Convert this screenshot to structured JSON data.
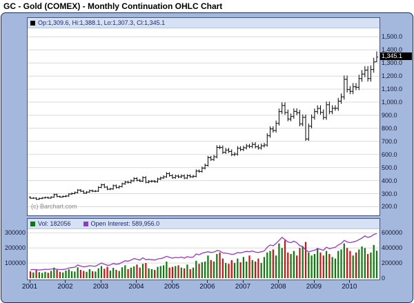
{
  "title": "GC - Gold (COMEX) - Monthly Continuation OHLC Chart",
  "main_legend": {
    "marker": "black-square-icon",
    "text": "Op:1,309.6, Hi:1,388.1, Lo:1,307.3, Cl:1,345.1"
  },
  "lower_legend": {
    "vol_marker": "green-square-icon",
    "vol_text": "Vol: 182056",
    "oi_marker": "purple-square-icon",
    "oi_text": "Open Interest: 589,956.0"
  },
  "watermark": "(c) Barchart.com",
  "price_badge": "1,345.1",
  "axes": {
    "price_tick_labels": [
      "1,500.0",
      "1,400.0",
      "1,300.0",
      "1,200.0",
      "1,100.0",
      "1,000.0",
      "900.0",
      "800.0",
      "700.0",
      "600.0",
      "500.0",
      "400.0",
      "300.0",
      "200.0"
    ],
    "vol_tick_labels_left": [
      "300000",
      "200000",
      "100000"
    ],
    "oi_tick_labels_right": [
      "600000",
      "400000",
      "200000",
      "0"
    ],
    "year_labels": [
      "2001",
      "2002",
      "2003",
      "2004",
      "2005",
      "2006",
      "2007",
      "2008",
      "2009",
      "2010"
    ]
  },
  "colors": {
    "background": "#a4b8de",
    "panel_border": "#1b2c54",
    "plot_bg": "#ffffff",
    "grid": "#d9d9d9",
    "ohlc_bar": "#000000",
    "volume_up": "#0a7a0a",
    "volume_down": "#cc1111",
    "open_interest": "#9933cc",
    "legend_bg": "#d6e1f5",
    "legend_text": "#1a2a66",
    "badge_bg": "#000000",
    "badge_text": "#ffffff",
    "watermark": "#8a8a8a"
  },
  "chart_data": {
    "type": "ohlc",
    "title": "GC - Gold (COMEX) - Monthly Continuation OHLC Chart",
    "frequency": "monthly",
    "x_start": "2001-01",
    "x_end": "2010-10",
    "bars": 118,
    "price_axis": {
      "range": [
        155,
        1560
      ],
      "ticks": [
        1500,
        1400,
        1300,
        1200,
        1100,
        1000,
        900,
        800,
        700,
        600,
        500,
        400,
        300,
        200
      ]
    },
    "volume_axis": {
      "range": [
        0,
        320000
      ],
      "ticks": [
        300000,
        200000,
        100000
      ]
    },
    "open_interest_axis": {
      "range": [
        0,
        640000
      ],
      "ticks": [
        600000,
        400000,
        200000,
        0
      ]
    },
    "open": [
      272,
      265,
      266,
      257,
      263,
      267,
      270,
      266,
      273,
      293,
      278,
      274,
      279,
      282,
      297,
      301,
      308,
      327,
      318,
      304,
      312,
      323,
      318,
      319,
      348,
      368,
      350,
      334,
      336,
      361,
      346,
      354,
      375,
      388,
      386,
      398,
      416,
      402,
      396,
      423,
      387,
      393,
      395,
      391,
      412,
      420,
      429,
      453,
      438,
      422,
      435,
      428,
      436,
      419,
      437,
      429,
      433,
      473,
      470,
      495,
      517,
      575,
      561,
      582,
      654,
      653,
      616,
      634,
      623,
      599,
      603,
      647,
      638,
      651,
      664,
      661,
      677,
      659,
      650,
      666,
      672,
      743,
      795,
      783,
      838,
      928,
      975,
      921,
      871,
      891,
      930,
      918,
      833,
      884,
      718,
      816,
      884,
      928,
      952,
      922,
      883,
      980,
      927,
      953,
      953,
      1008,
      1040,
      1175,
      1096,
      1083,
      1118,
      1114,
      1180,
      1215,
      1245,
      1181,
      1250,
      1309.6
    ],
    "high": [
      279,
      273,
      273,
      270,
      274,
      277,
      277,
      280,
      300,
      300,
      285,
      286,
      289,
      304,
      309,
      316,
      335,
      335,
      326,
      320,
      331,
      331,
      327,
      357,
      377,
      377,
      359,
      344,
      370,
      370,
      363,
      384,
      398,
      398,
      408,
      426,
      426,
      412,
      433,
      433,
      403,
      405,
      405,
      422,
      430,
      440,
      464,
      464,
      449,
      446,
      446,
      447,
      447,
      448,
      448,
      444,
      485,
      485,
      507,
      530,
      589,
      589,
      597,
      670,
      670,
      669,
      650,
      650,
      639,
      618,
      663,
      663,
      667,
      681,
      681,
      694,
      694,
      676,
      683,
      689,
      762,
      815,
      815,
      859,
      951,
      999,
      999,
      944,
      913,
      953,
      953,
      941,
      906,
      906,
      836,
      906,
      951,
      976,
      976,
      945,
      1005,
      1005,
      977,
      977,
      1033,
      1066,
      1204,
      1204,
      1123,
      1146,
      1146,
      1210,
      1245,
      1276,
      1276,
      1281,
      1340,
      1388.1
    ],
    "low": [
      260,
      260,
      252,
      252,
      258,
      262,
      261,
      261,
      268,
      272,
      269,
      269,
      273,
      276,
      291,
      295,
      302,
      312,
      298,
      298,
      306,
      312,
      312,
      313,
      341,
      343,
      327,
      327,
      329,
      339,
      339,
      347,
      368,
      378,
      378,
      390,
      394,
      388,
      388,
      379,
      379,
      385,
      383,
      383,
      404,
      412,
      420,
      429,
      414,
      414,
      419,
      419,
      411,
      411,
      420,
      420,
      424,
      461,
      461,
      485,
      507,
      550,
      550,
      570,
      640,
      604,
      604,
      611,
      587,
      587,
      591,
      625,
      625,
      638,
      648,
      648,
      646,
      637,
      637,
      653,
      659,
      728,
      767,
      767,
      821,
      909,
      903,
      854,
      854,
      873,
      900,
      816,
      816,
      704,
      704,
      800,
      866,
      909,
      904,
      865,
      865,
      908,
      908,
      934,
      934,
      988,
      1019,
      1074,
      1061,
      1061,
      1092,
      1092,
      1156,
      1191,
      1157,
      1157,
      1225,
      1307.3
    ],
    "close": [
      265,
      266,
      257,
      263,
      267,
      270,
      266,
      273,
      293,
      278,
      274,
      279,
      282,
      297,
      301,
      308,
      327,
      318,
      304,
      312,
      323,
      318,
      319,
      348,
      368,
      350,
      334,
      336,
      361,
      346,
      354,
      375,
      388,
      386,
      398,
      416,
      402,
      396,
      423,
      387,
      393,
      395,
      391,
      412,
      420,
      429,
      453,
      438,
      422,
      435,
      428,
      436,
      419,
      437,
      429,
      433,
      473,
      470,
      495,
      517,
      575,
      561,
      582,
      654,
      653,
      616,
      634,
      623,
      599,
      603,
      647,
      638,
      651,
      664,
      661,
      677,
      659,
      650,
      666,
      672,
      743,
      795,
      783,
      838,
      928,
      975,
      921,
      871,
      891,
      930,
      918,
      833,
      884,
      718,
      816,
      884,
      928,
      952,
      922,
      883,
      980,
      927,
      953,
      953,
      1008,
      1040,
      1175,
      1096,
      1083,
      1118,
      1114,
      1180,
      1215,
      1245,
      1181,
      1250,
      1307,
      1345.1
    ],
    "volume": [
      45000,
      38000,
      52000,
      40000,
      35000,
      42000,
      36000,
      48000,
      70000,
      55000,
      42000,
      38000,
      50000,
      58000,
      46000,
      44000,
      72000,
      55000,
      48000,
      42000,
      60000,
      46000,
      44000,
      65000,
      80000,
      62000,
      75000,
      50000,
      68000,
      55000,
      48000,
      72000,
      85000,
      60000,
      70000,
      78000,
      90000,
      70000,
      95000,
      100000,
      65000,
      60000,
      55000,
      75000,
      80000,
      85000,
      110000,
      70000,
      75000,
      80000,
      85000,
      70000,
      65000,
      90000,
      60000,
      70000,
      115000,
      95000,
      105000,
      110000,
      150000,
      120000,
      110000,
      160000,
      170000,
      130000,
      100000,
      95000,
      120000,
      100000,
      130000,
      105000,
      140000,
      110000,
      150000,
      120000,
      110000,
      130000,
      100000,
      140000,
      170000,
      180000,
      190000,
      150000,
      230000,
      200000,
      250000,
      170000,
      160000,
      180000,
      150000,
      200000,
      210000,
      240000,
      170000,
      150000,
      160000,
      200000,
      170000,
      150000,
      180000,
      160000,
      140000,
      130000,
      180000,
      190000,
      230000,
      200000,
      180000,
      150000,
      170000,
      190000,
      210000,
      200000,
      160000,
      170000,
      220000,
      182056
    ],
    "open_interest": [
      110000,
      115000,
      112000,
      108000,
      112000,
      118000,
      115000,
      120000,
      125000,
      118000,
      114000,
      116000,
      120000,
      135000,
      140000,
      145000,
      175000,
      160000,
      150000,
      155000,
      165000,
      160000,
      158000,
      180000,
      200000,
      185000,
      170000,
      175000,
      195000,
      185000,
      190000,
      210000,
      230000,
      225000,
      240000,
      260000,
      250000,
      240000,
      270000,
      245000,
      250000,
      245000,
      240000,
      255000,
      260000,
      270000,
      290000,
      275000,
      265000,
      275000,
      270000,
      280000,
      265000,
      285000,
      275000,
      280000,
      320000,
      310000,
      330000,
      340000,
      350000,
      340000,
      345000,
      365000,
      360000,
      335000,
      330000,
      325000,
      315000,
      320000,
      340000,
      335000,
      345000,
      355000,
      350000,
      360000,
      345000,
      340000,
      350000,
      360000,
      410000,
      440000,
      430000,
      460000,
      500000,
      540000,
      510000,
      480000,
      470000,
      490000,
      470000,
      430000,
      420000,
      370000,
      350000,
      360000,
      370000,
      390000,
      380000,
      370000,
      410000,
      390000,
      400000,
      410000,
      440000,
      460000,
      500000,
      480000,
      470000,
      480000,
      490000,
      510000,
      530000,
      560000,
      540000,
      550000,
      580000,
      589956
    ],
    "last_bar": {
      "open": 1309.6,
      "high": 1388.1,
      "low": 1307.3,
      "close": 1345.1,
      "volume": 182056,
      "open_interest": 589956.0
    }
  }
}
